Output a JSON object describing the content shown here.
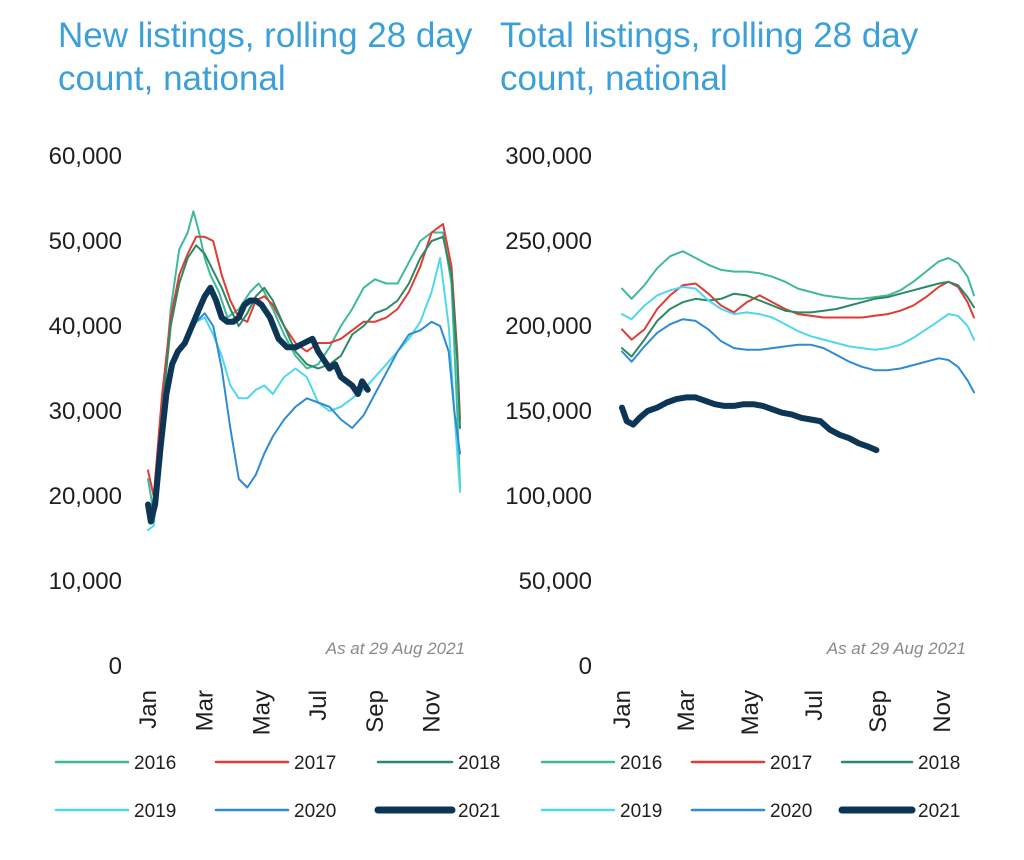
{
  "chart_data": [
    {
      "type": "line",
      "title": "New listings, rolling 28 day count, national",
      "ylim": [
        0,
        60000
      ],
      "yticks": [
        "60,000",
        "50,000",
        "40,000",
        "30,000",
        "20,000",
        "10,000",
        "0"
      ],
      "ytick_values": [
        60000,
        50000,
        40000,
        30000,
        20000,
        10000,
        0
      ],
      "month_labels": [
        "Jan",
        "Mar",
        "May",
        "Jul",
        "Sep",
        "Nov"
      ],
      "month_positions": [
        1,
        3,
        5,
        7,
        9,
        11
      ],
      "annotation": "As at 29 Aug 2021",
      "grid": false,
      "legend_position": "bottom",
      "series": [
        {
          "name": "2016",
          "color": "#3dba9c",
          "width": 2,
          "x": [
            1.0,
            1.2,
            1.5,
            1.8,
            2.1,
            2.4,
            2.6,
            2.8,
            3.0,
            3.2,
            3.5,
            3.8,
            4.2,
            4.6,
            4.9,
            5.1,
            5.4,
            5.8,
            6.2,
            6.6,
            7.0,
            7.4,
            7.8,
            8.2,
            8.6,
            9.0,
            9.4,
            9.8,
            10.2,
            10.6,
            11.0,
            11.4,
            11.7,
            11.9,
            12.0
          ],
          "y": [
            22000,
            18000,
            30000,
            42000,
            49000,
            51000,
            53500,
            51000,
            48000,
            46000,
            44000,
            41000,
            42000,
            44000,
            45000,
            44000,
            42000,
            39000,
            36500,
            35000,
            35500,
            37500,
            40000,
            42000,
            44500,
            45500,
            45000,
            45000,
            47500,
            50000,
            51000,
            51000,
            45000,
            30000,
            21000
          ]
        },
        {
          "name": "2017",
          "color": "#e03b35",
          "width": 2,
          "x": [
            1.0,
            1.2,
            1.5,
            1.8,
            2.1,
            2.4,
            2.7,
            3.0,
            3.3,
            3.6,
            3.9,
            4.2,
            4.5,
            4.8,
            5.1,
            5.4,
            5.8,
            6.2,
            6.6,
            7.0,
            7.4,
            7.8,
            8.2,
            8.6,
            9.0,
            9.4,
            9.8,
            10.2,
            10.6,
            11.0,
            11.4,
            11.7,
            11.9,
            12.0
          ],
          "y": [
            23000,
            20000,
            32000,
            41000,
            46000,
            48500,
            50500,
            50500,
            50000,
            46000,
            43000,
            41000,
            40500,
            43000,
            43500,
            42500,
            40000,
            38000,
            37000,
            38000,
            38000,
            38500,
            39500,
            40500,
            40500,
            41000,
            42000,
            44000,
            47000,
            51000,
            52000,
            47000,
            37000,
            29000
          ]
        },
        {
          "name": "2018",
          "color": "#2b8a64",
          "width": 2,
          "x": [
            1.0,
            1.2,
            1.5,
            1.8,
            2.1,
            2.4,
            2.7,
            3.0,
            3.3,
            3.6,
            3.9,
            4.2,
            4.5,
            4.8,
            5.1,
            5.4,
            5.8,
            6.2,
            6.6,
            7.0,
            7.4,
            7.8,
            8.2,
            8.6,
            9.0,
            9.4,
            9.8,
            10.2,
            10.6,
            11.0,
            11.4,
            11.7,
            11.9,
            12.0
          ],
          "y": [
            19000,
            19000,
            30000,
            40000,
            45000,
            48000,
            49500,
            48500,
            46500,
            44500,
            42000,
            40000,
            41500,
            43500,
            44500,
            43000,
            40000,
            37000,
            35500,
            35000,
            35500,
            36500,
            39000,
            40000,
            41500,
            42000,
            43000,
            45000,
            48000,
            50000,
            50500,
            46000,
            36000,
            28000
          ]
        },
        {
          "name": "2019",
          "color": "#4fd6f0",
          "width": 2,
          "x": [
            1.0,
            1.2,
            1.5,
            1.8,
            2.1,
            2.4,
            2.7,
            3.0,
            3.3,
            3.6,
            3.9,
            4.2,
            4.5,
            4.8,
            5.1,
            5.4,
            5.8,
            6.2,
            6.6,
            7.0,
            7.4,
            7.8,
            8.2,
            8.6,
            9.0,
            9.4,
            9.8,
            10.2,
            10.6,
            11.0,
            11.3,
            11.6,
            11.8,
            12.0
          ],
          "y": [
            16000,
            16500,
            27000,
            35000,
            37000,
            38500,
            40500,
            41000,
            39000,
            36500,
            33000,
            31500,
            31500,
            32500,
            33000,
            32000,
            34000,
            35000,
            34000,
            31000,
            30000,
            30500,
            31500,
            32500,
            34000,
            35500,
            37000,
            38500,
            40500,
            44000,
            48000,
            40000,
            30000,
            20500
          ]
        },
        {
          "name": "2020",
          "color": "#2f8bd4",
          "width": 2,
          "x": [
            1.0,
            1.2,
            1.5,
            1.8,
            2.1,
            2.4,
            2.7,
            3.0,
            3.3,
            3.6,
            3.9,
            4.2,
            4.5,
            4.8,
            5.1,
            5.4,
            5.8,
            6.2,
            6.6,
            7.0,
            7.4,
            7.8,
            8.2,
            8.6,
            9.0,
            9.4,
            9.8,
            10.2,
            10.6,
            11.0,
            11.3,
            11.6,
            11.8,
            12.0
          ],
          "y": [
            18000,
            17000,
            29000,
            35000,
            37000,
            38500,
            40500,
            41500,
            40000,
            35000,
            28000,
            22000,
            21000,
            22500,
            25000,
            27000,
            29000,
            30500,
            31500,
            31000,
            30500,
            29000,
            28000,
            29500,
            32000,
            34500,
            37000,
            39000,
            39500,
            40500,
            40000,
            37000,
            30000,
            25000
          ]
        },
        {
          "name": "2021",
          "color": "#0d3556",
          "width": 6,
          "x": [
            1.0,
            1.1,
            1.25,
            1.45,
            1.65,
            1.85,
            2.05,
            2.3,
            2.55,
            2.8,
            3.0,
            3.2,
            3.4,
            3.6,
            3.8,
            4.0,
            4.2,
            4.4,
            4.6,
            4.8,
            5.0,
            5.3,
            5.6,
            5.9,
            6.2,
            6.5,
            6.8,
            7.0,
            7.2,
            7.4,
            7.6,
            7.8,
            8.0,
            8.2,
            8.4,
            8.55,
            8.75
          ],
          "y": [
            19000,
            17000,
            19000,
            26000,
            32000,
            35500,
            37000,
            38000,
            40000,
            42000,
            43500,
            44500,
            43000,
            41000,
            40500,
            40500,
            41000,
            42500,
            43000,
            43000,
            42500,
            41000,
            38500,
            37500,
            37500,
            38000,
            38500,
            37000,
            36000,
            35000,
            35500,
            34000,
            33500,
            33000,
            32000,
            33500,
            32500
          ]
        }
      ]
    },
    {
      "type": "line",
      "title": "Total listings, rolling 28 day count, national",
      "ylim": [
        0,
        300000
      ],
      "yticks": [
        "300,000",
        "250,000",
        "200,000",
        "150,000",
        "100,000",
        "50,000",
        "0"
      ],
      "ytick_values": [
        300000,
        250000,
        200000,
        150000,
        100000,
        50000,
        0
      ],
      "month_labels": [
        "Jan",
        "Mar",
        "May",
        "Jul",
        "Sep",
        "Nov"
      ],
      "month_positions": [
        1,
        3,
        5,
        7,
        9,
        11
      ],
      "annotation": "As at 29 Aug 2021",
      "grid": false,
      "legend_position": "bottom",
      "series": [
        {
          "name": "2016",
          "color": "#3dba9c",
          "width": 2,
          "x": [
            1.0,
            1.3,
            1.7,
            2.1,
            2.5,
            2.9,
            3.3,
            3.7,
            4.1,
            4.5,
            4.9,
            5.3,
            5.7,
            6.1,
            6.5,
            6.9,
            7.3,
            7.7,
            8.1,
            8.5,
            8.9,
            9.3,
            9.7,
            10.1,
            10.5,
            10.9,
            11.2,
            11.5,
            11.8,
            12.0
          ],
          "y": [
            222000,
            216000,
            224000,
            234000,
            241000,
            244000,
            240000,
            236000,
            233000,
            232000,
            232000,
            231000,
            229000,
            226000,
            222000,
            220000,
            218000,
            217000,
            216000,
            216000,
            217000,
            218000,
            221000,
            226000,
            232000,
            238000,
            240000,
            237000,
            229000,
            218000
          ]
        },
        {
          "name": "2017",
          "color": "#e03b35",
          "width": 2,
          "x": [
            1.0,
            1.3,
            1.7,
            2.1,
            2.5,
            2.9,
            3.3,
            3.7,
            4.1,
            4.5,
            4.9,
            5.3,
            5.7,
            6.1,
            6.5,
            6.9,
            7.3,
            7.7,
            8.1,
            8.5,
            8.9,
            9.3,
            9.7,
            10.1,
            10.5,
            10.9,
            11.2,
            11.5,
            11.8,
            12.0
          ],
          "y": [
            198000,
            192000,
            198000,
            210000,
            218000,
            224000,
            225000,
            219000,
            212000,
            208000,
            214000,
            218000,
            214000,
            210000,
            207000,
            206000,
            205000,
            205000,
            205000,
            205000,
            206000,
            207000,
            209000,
            212000,
            217000,
            223000,
            226000,
            223000,
            214000,
            205000
          ]
        },
        {
          "name": "2018",
          "color": "#2b8a64",
          "width": 2,
          "x": [
            1.0,
            1.3,
            1.7,
            2.1,
            2.5,
            2.9,
            3.3,
            3.7,
            4.1,
            4.5,
            4.9,
            5.3,
            5.7,
            6.1,
            6.5,
            6.9,
            7.3,
            7.7,
            8.1,
            8.5,
            8.9,
            9.3,
            9.7,
            10.1,
            10.5,
            10.9,
            11.2,
            11.5,
            11.8,
            12.0
          ],
          "y": [
            187000,
            182000,
            192000,
            203000,
            210000,
            214000,
            216000,
            215000,
            216000,
            219000,
            218000,
            215000,
            212000,
            209000,
            208000,
            208000,
            209000,
            210000,
            212000,
            214000,
            216000,
            217000,
            219000,
            221000,
            223000,
            225000,
            226000,
            224000,
            217000,
            211000
          ]
        },
        {
          "name": "2019",
          "color": "#4fd6f0",
          "width": 2,
          "x": [
            1.0,
            1.3,
            1.7,
            2.1,
            2.5,
            2.9,
            3.3,
            3.7,
            4.1,
            4.5,
            4.9,
            5.3,
            5.7,
            6.1,
            6.5,
            6.9,
            7.3,
            7.7,
            8.1,
            8.5,
            8.9,
            9.3,
            9.7,
            10.1,
            10.5,
            10.9,
            11.2,
            11.5,
            11.8,
            12.0
          ],
          "y": [
            207000,
            204000,
            212000,
            218000,
            221000,
            223000,
            222000,
            215000,
            210000,
            207000,
            208000,
            207000,
            205000,
            201000,
            197000,
            194000,
            192000,
            190000,
            188000,
            187000,
            186000,
            187000,
            189000,
            193000,
            198000,
            203000,
            207000,
            206000,
            200000,
            192000
          ]
        },
        {
          "name": "2020",
          "color": "#2f8bd4",
          "width": 2,
          "x": [
            1.0,
            1.3,
            1.7,
            2.1,
            2.5,
            2.9,
            3.3,
            3.7,
            4.1,
            4.5,
            4.9,
            5.3,
            5.7,
            6.1,
            6.5,
            6.9,
            7.3,
            7.7,
            8.1,
            8.5,
            8.9,
            9.3,
            9.7,
            10.1,
            10.5,
            10.9,
            11.2,
            11.5,
            11.8,
            12.0
          ],
          "y": [
            185000,
            179000,
            188000,
            196000,
            201000,
            204000,
            203000,
            198000,
            191000,
            187000,
            186000,
            186000,
            187000,
            188000,
            189000,
            189000,
            187000,
            183000,
            179000,
            176000,
            174000,
            174000,
            175000,
            177000,
            179000,
            181000,
            180000,
            176000,
            168000,
            161000
          ]
        },
        {
          "name": "2021",
          "color": "#0d3556",
          "width": 6,
          "x": [
            1.0,
            1.15,
            1.35,
            1.55,
            1.8,
            2.1,
            2.4,
            2.7,
            3.0,
            3.3,
            3.6,
            3.9,
            4.2,
            4.5,
            4.8,
            5.1,
            5.4,
            5.7,
            6.0,
            6.3,
            6.6,
            6.9,
            7.2,
            7.5,
            7.8,
            8.1,
            8.4,
            8.7,
            8.95
          ],
          "y": [
            152000,
            144000,
            142000,
            146000,
            150000,
            152000,
            155000,
            157000,
            158000,
            158000,
            156000,
            154000,
            153000,
            153000,
            154000,
            154000,
            153000,
            151000,
            149000,
            148000,
            146000,
            145000,
            144000,
            139000,
            136000,
            134000,
            131000,
            129000,
            127000
          ]
        }
      ]
    }
  ],
  "legend": [
    "2016",
    "2017",
    "2018",
    "2019",
    "2020",
    "2021"
  ]
}
